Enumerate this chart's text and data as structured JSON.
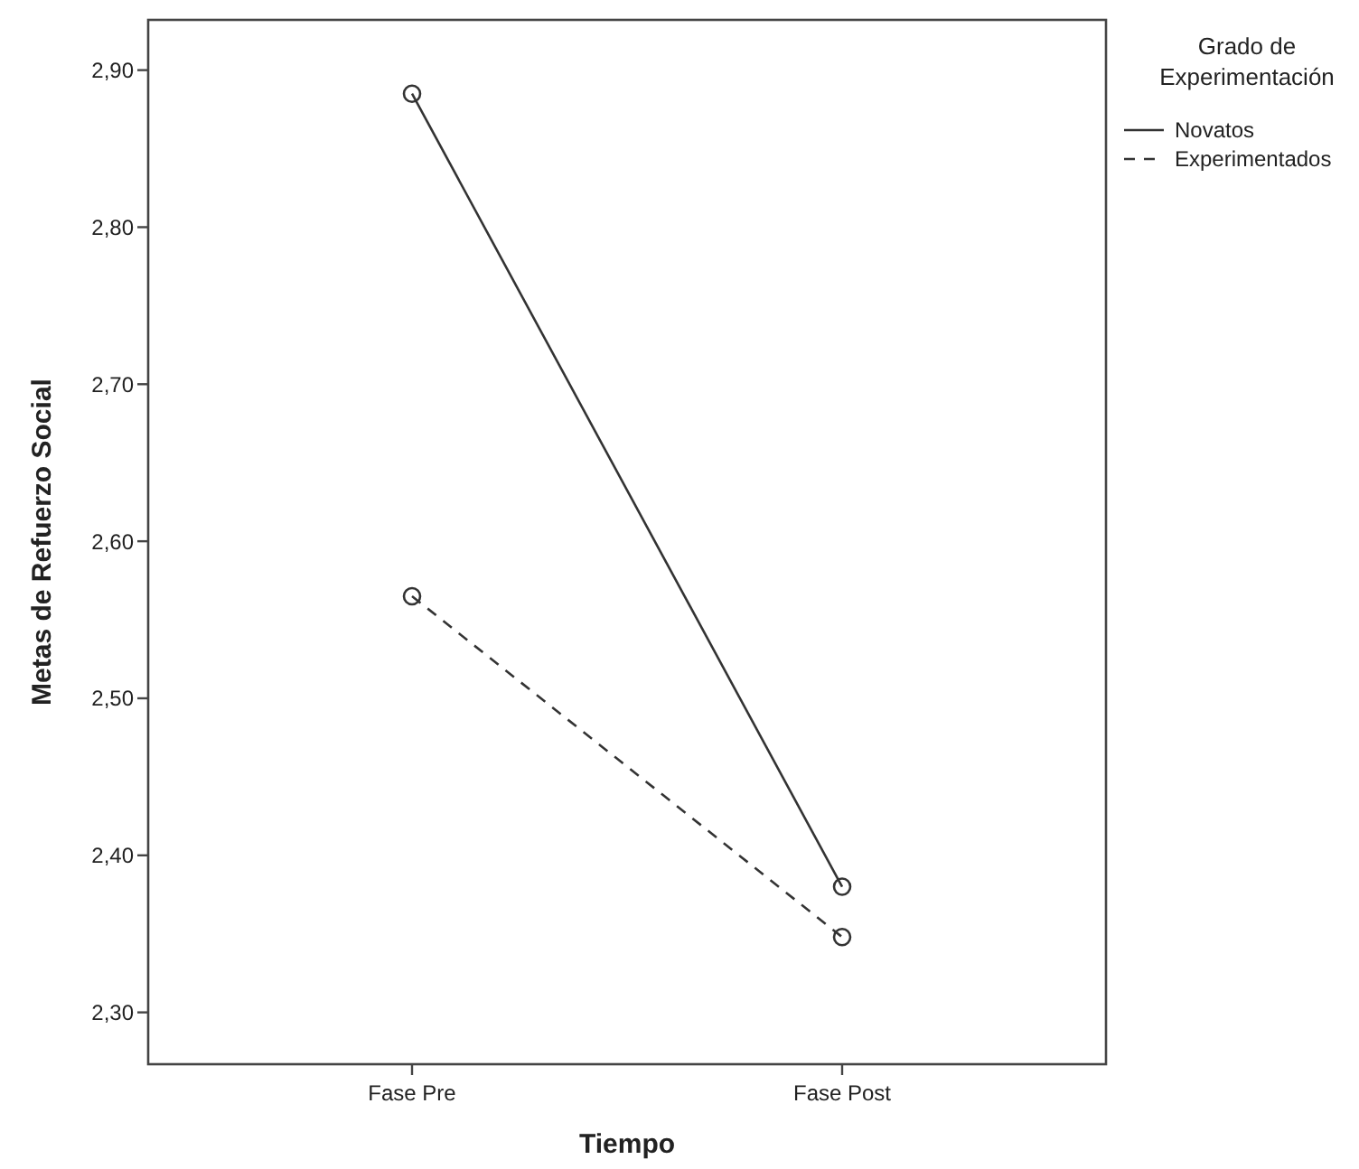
{
  "chart_data": {
    "type": "line",
    "xlabel": "Tiempo",
    "ylabel": "Metas de Refuerzo Social",
    "legend_title": "Grado de Experimentación",
    "categories": [
      "Fase Pre",
      "Fase Post"
    ],
    "series": [
      {
        "name": "Novatos",
        "color": "#333333",
        "values": [
          2.885,
          2.38
        ],
        "line_style": "solid"
      },
      {
        "name": "Experimentados",
        "color": "#333333",
        "values": [
          2.565,
          2.348
        ],
        "line_style": "dashed"
      }
    ],
    "ylim": [
      2.267,
      2.932
    ],
    "yticks": [
      {
        "value": 2.3,
        "label": "2,30"
      },
      {
        "value": 2.4,
        "label": "2,40"
      },
      {
        "value": 2.5,
        "label": "2,50"
      },
      {
        "value": 2.6,
        "label": "2,60"
      },
      {
        "value": 2.7,
        "label": "2,70"
      },
      {
        "value": 2.8,
        "label": "2,80"
      },
      {
        "value": 2.9,
        "label": "2,90"
      }
    ],
    "marker": "circle",
    "legend": "top right",
    "grid": false
  }
}
